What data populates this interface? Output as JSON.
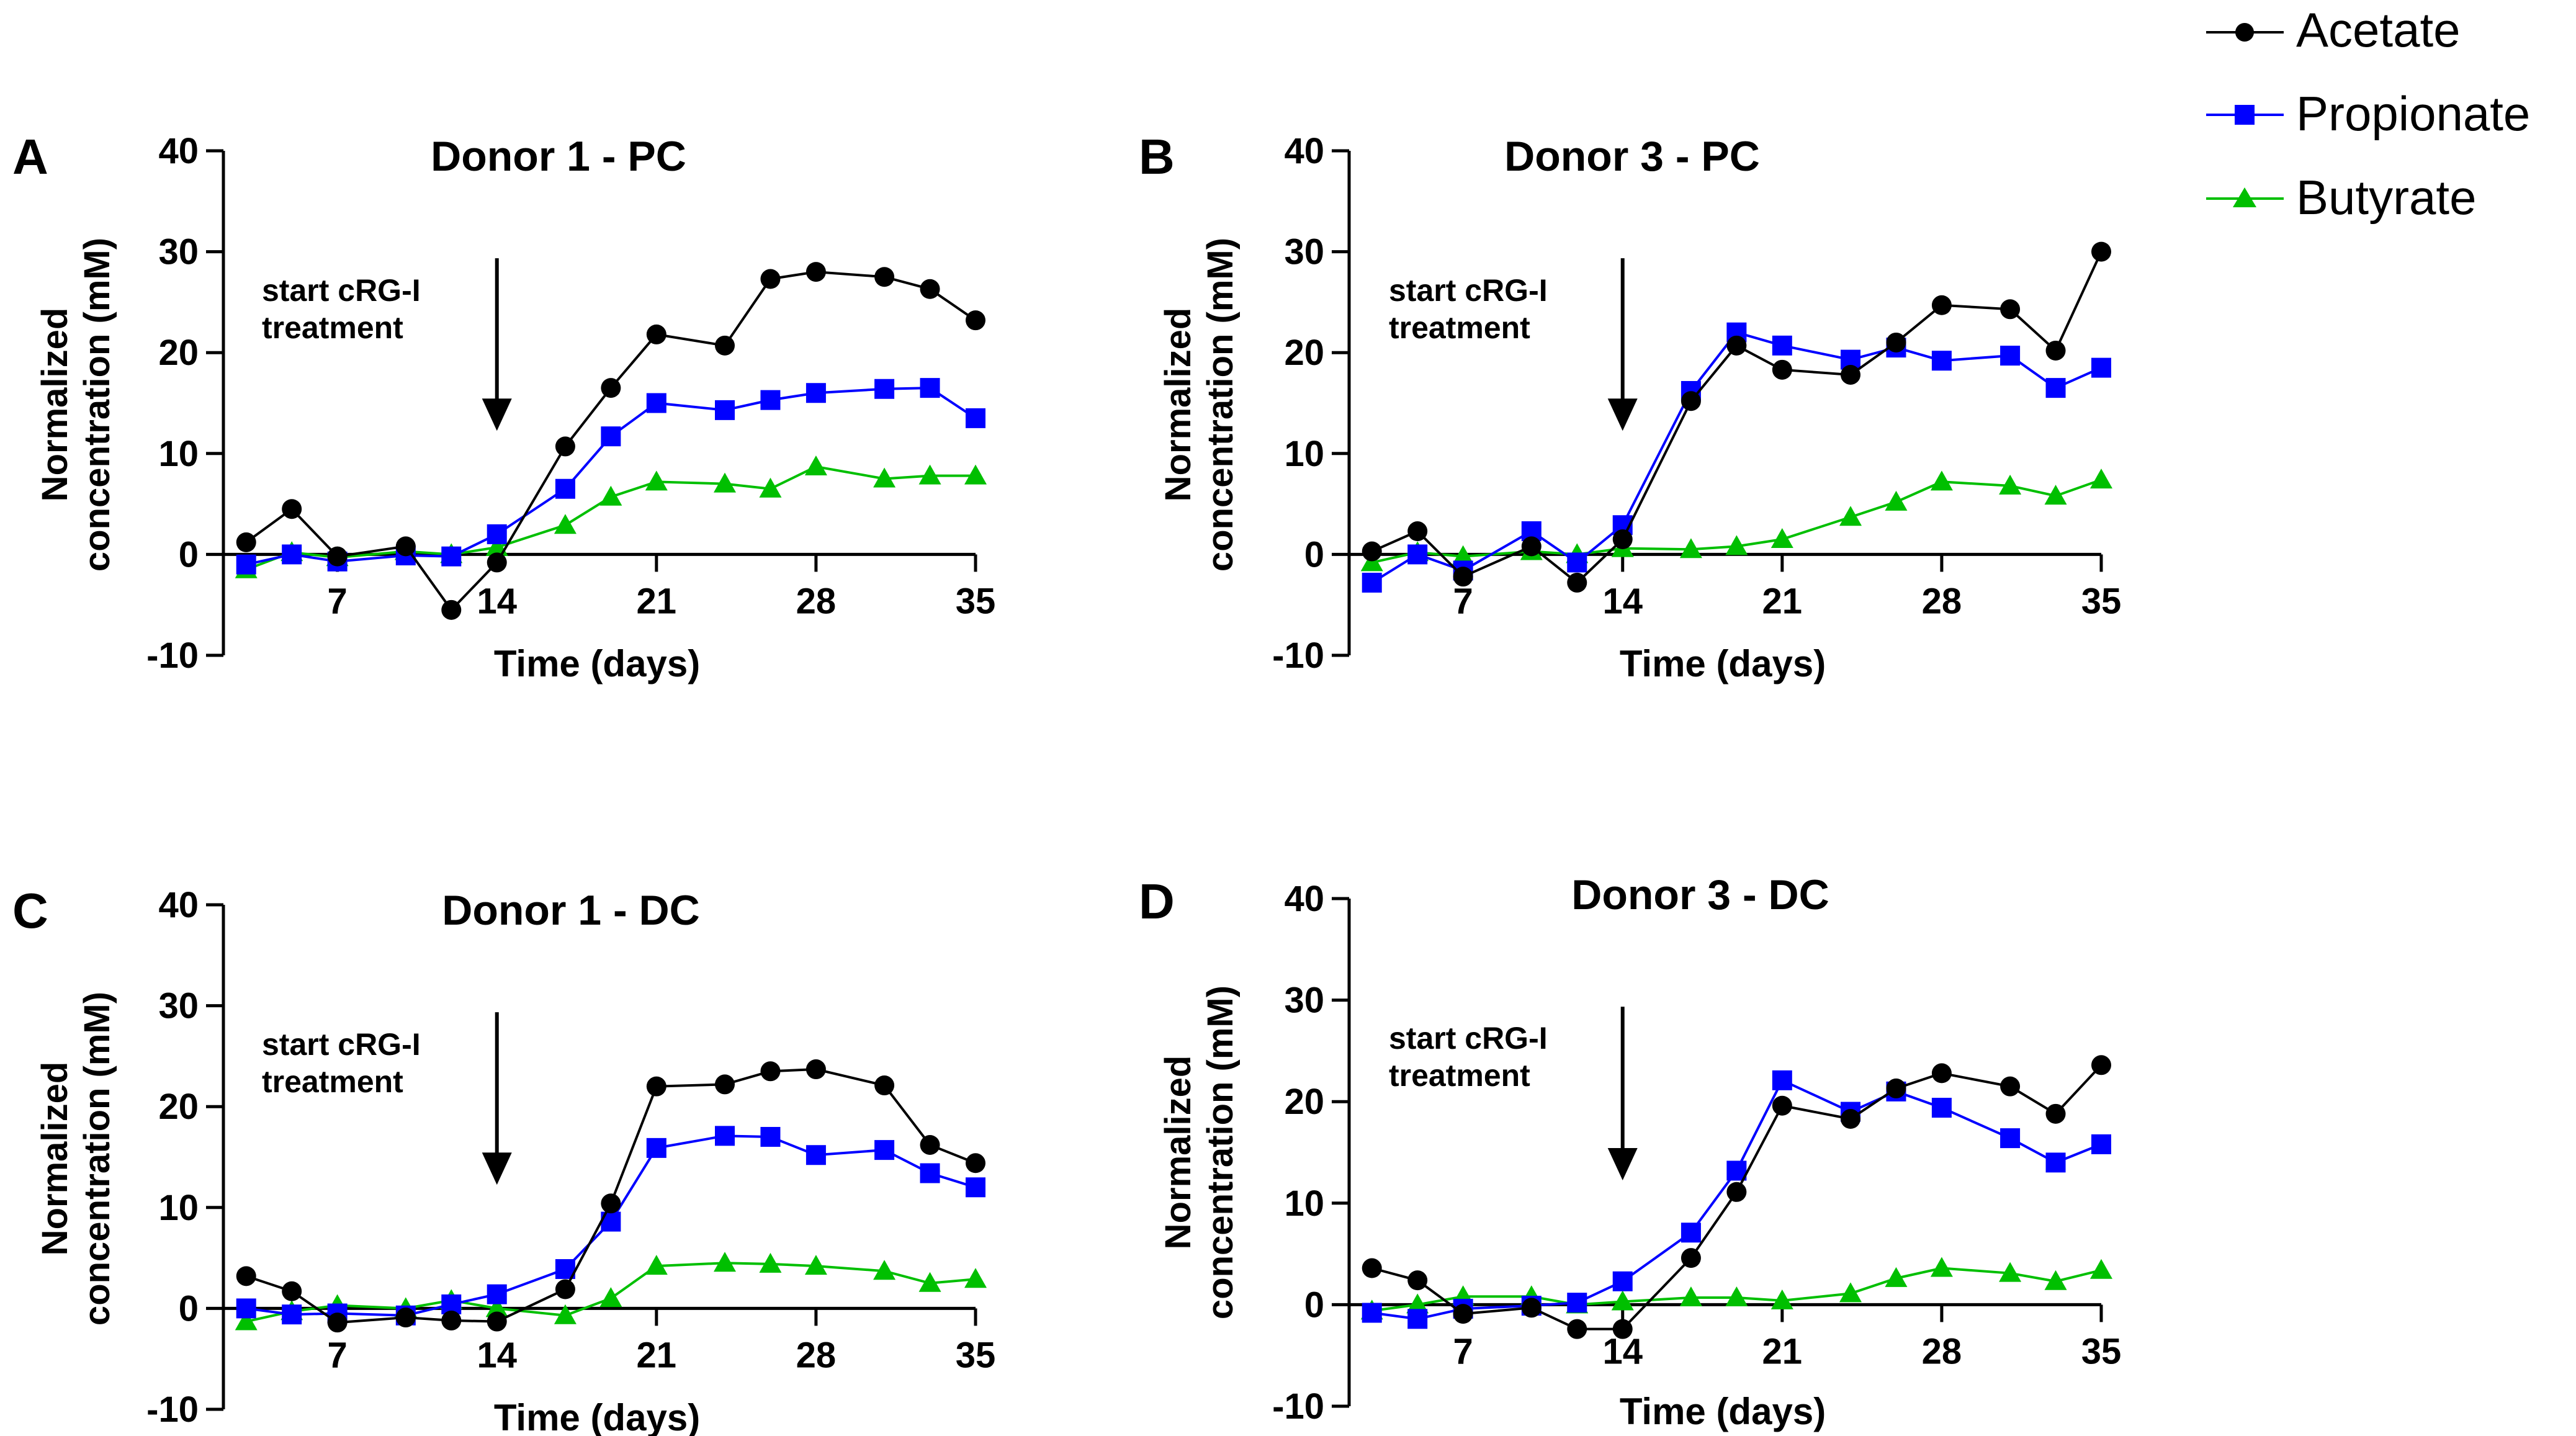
{
  "legend": {
    "entries": [
      {
        "name": "Acetate",
        "color": "#000000",
        "marker": "circle"
      },
      {
        "name": "Propionate",
        "color": "#0000ff",
        "marker": "square"
      },
      {
        "name": "Butyrate",
        "color": "#00bf00",
        "marker": "triangle"
      }
    ]
  },
  "chart_data": [
    {
      "type": "line",
      "panel_letter": "A",
      "title": "Donor 1 - PC",
      "xlabel": "Time (days)",
      "ylabel_line1": "Normalized",
      "ylabel_line2": "concentration (mM)",
      "xlim": [
        2,
        35
      ],
      "ylim": [
        -10,
        40
      ],
      "xticks": [
        7,
        14,
        21,
        28,
        35
      ],
      "yticks": [
        -10,
        0,
        10,
        20,
        30,
        40
      ],
      "annotation": {
        "line1": "start cRG-I",
        "line2": "treatment",
        "arrow_x": 14
      },
      "x": [
        3,
        5,
        7,
        10,
        12,
        14,
        17,
        19,
        21,
        24,
        26,
        28,
        31,
        33,
        35
      ],
      "series": [
        {
          "name": "Acetate",
          "values": [
            1.2,
            4.5,
            -0.2,
            0.8,
            -5.5,
            -0.8,
            10.7,
            16.5,
            21.8,
            20.7,
            27.3,
            28.0,
            27.5,
            26.3,
            23.2
          ]
        },
        {
          "name": "Propionate",
          "values": [
            -1.0,
            0.0,
            -0.7,
            -0.1,
            -0.2,
            2.0,
            6.5,
            11.7,
            15.0,
            14.3,
            15.3,
            16.0,
            16.4,
            16.5,
            13.5
          ]
        },
        {
          "name": "Butyrate",
          "values": [
            -1.5,
            0.2,
            -0.3,
            0.3,
            0.0,
            0.7,
            2.9,
            5.7,
            7.2,
            7.0,
            6.5,
            8.7,
            7.5,
            7.8,
            7.8
          ]
        }
      ]
    },
    {
      "type": "line",
      "panel_letter": "B",
      "title": "Donor 3 - PC",
      "xlabel": "Time (days)",
      "ylabel_line1": "Normalized",
      "ylabel_line2": "concentration (mM)",
      "xlim": [
        2,
        35
      ],
      "ylim": [
        -10,
        40
      ],
      "xticks": [
        7,
        14,
        21,
        28,
        35
      ],
      "yticks": [
        -10,
        0,
        10,
        20,
        30,
        40
      ],
      "annotation": {
        "line1": "start cRG-I",
        "line2": "treatment",
        "arrow_x": 14
      },
      "x": [
        3,
        5,
        7,
        10,
        12,
        14,
        17,
        19,
        21,
        24,
        26,
        28,
        31,
        33,
        35
      ],
      "series": [
        {
          "name": "Acetate",
          "values": [
            0.3,
            2.3,
            -2.2,
            0.8,
            -2.8,
            1.5,
            15.2,
            20.7,
            18.3,
            17.8,
            21.0,
            24.7,
            24.3,
            20.2,
            30.0
          ]
        },
        {
          "name": "Propionate",
          "values": [
            -2.8,
            0.0,
            -1.6,
            2.3,
            -0.8,
            2.9,
            16.2,
            22.0,
            20.7,
            19.3,
            20.5,
            19.2,
            19.7,
            16.5,
            18.5
          ]
        },
        {
          "name": "Butyrate",
          "values": [
            -0.8,
            0.2,
            -0.2,
            0.3,
            0.0,
            0.6,
            0.5,
            0.8,
            1.5,
            3.7,
            5.2,
            7.2,
            6.8,
            5.8,
            7.4
          ]
        }
      ]
    },
    {
      "type": "line",
      "panel_letter": "C",
      "title": "Donor 1 - DC",
      "xlabel": "Time (days)",
      "ylabel_line1": "Normalized",
      "ylabel_line2": "concentration (mM)",
      "xlim": [
        2,
        35
      ],
      "ylim": [
        -10,
        40
      ],
      "xticks": [
        7,
        14,
        21,
        28,
        35
      ],
      "yticks": [
        -10,
        0,
        10,
        20,
        30,
        40
      ],
      "annotation": {
        "line1": "start cRG-I",
        "line2": "treatment",
        "arrow_x": 14
      },
      "x": [
        3,
        5,
        7,
        10,
        12,
        14,
        17,
        19,
        21,
        24,
        26,
        28,
        31,
        33,
        35
      ],
      "series": [
        {
          "name": "Acetate",
          "values": [
            3.2,
            1.7,
            -1.4,
            -0.9,
            -1.2,
            -1.3,
            1.9,
            10.4,
            22.0,
            22.2,
            23.5,
            23.7,
            22.1,
            16.2,
            14.4
          ]
        },
        {
          "name": "Propionate",
          "values": [
            0.0,
            -0.6,
            -0.5,
            -0.7,
            0.4,
            1.4,
            3.9,
            8.6,
            15.9,
            17.1,
            17.0,
            15.2,
            15.7,
            13.4,
            12.0
          ]
        },
        {
          "name": "Butyrate",
          "values": [
            -1.3,
            -0.3,
            0.3,
            0.0,
            0.8,
            0.0,
            -0.7,
            1.0,
            4.2,
            4.5,
            4.4,
            4.2,
            3.7,
            2.5,
            2.9
          ]
        }
      ]
    },
    {
      "type": "line",
      "panel_letter": "D",
      "title": "Donor 3 - DC",
      "xlabel": "Time (days)",
      "ylabel_line1": "Normalized",
      "ylabel_line2": "concentration (mM)",
      "xlim": [
        2,
        35
      ],
      "ylim": [
        -10,
        40
      ],
      "xticks": [
        7,
        14,
        21,
        28,
        35
      ],
      "yticks": [
        -10,
        0,
        10,
        20,
        30,
        40
      ],
      "annotation": {
        "line1": "start cRG-I",
        "line2": "treatment",
        "arrow_x": 14
      },
      "x": [
        3,
        5,
        7,
        10,
        12,
        14,
        17,
        19,
        21,
        24,
        26,
        28,
        31,
        33,
        35
      ],
      "series": [
        {
          "name": "Acetate",
          "values": [
            3.6,
            2.4,
            -0.9,
            -0.3,
            -2.4,
            -2.4,
            4.6,
            11.1,
            19.6,
            18.3,
            21.3,
            22.8,
            21.5,
            18.8,
            23.6
          ]
        },
        {
          "name": "Propionate",
          "values": [
            -0.8,
            -1.4,
            -0.4,
            -0.1,
            0.2,
            2.3,
            7.1,
            13.2,
            22.1,
            19.0,
            21.0,
            19.4,
            16.4,
            14.0,
            15.8
          ]
        },
        {
          "name": "Butyrate",
          "values": [
            -0.6,
            0.0,
            0.8,
            0.8,
            0.0,
            0.3,
            0.7,
            0.7,
            0.4,
            1.1,
            2.6,
            3.6,
            3.1,
            2.3,
            3.4
          ]
        }
      ]
    }
  ]
}
